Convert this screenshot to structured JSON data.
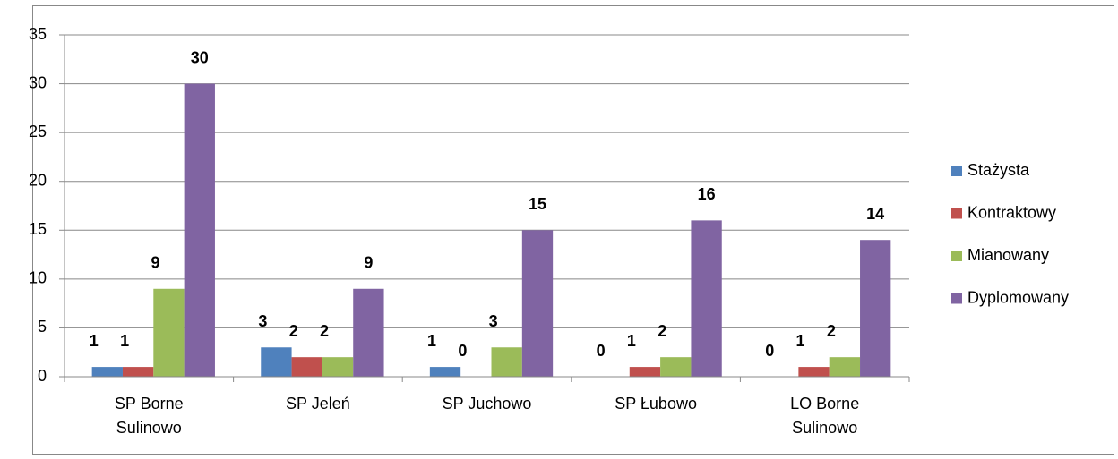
{
  "chart_data": {
    "type": "bar",
    "categories": [
      "SP Borne Sulinowo",
      "SP Jeleń",
      "SP Juchowo",
      "SP Łubowo",
      "LO Borne Sulinowo"
    ],
    "series": [
      {
        "name": "Stażysta",
        "color": "#4f81bd",
        "values": [
          1,
          3,
          1,
          0,
          0
        ]
      },
      {
        "name": "Kontraktowy",
        "color": "#c0504d",
        "values": [
          1,
          2,
          0,
          1,
          1
        ]
      },
      {
        "name": "Mianowany",
        "color": "#9bbb59",
        "values": [
          9,
          2,
          3,
          2,
          2
        ]
      },
      {
        "name": "Dyplomowany",
        "color": "#8064a2",
        "values": [
          30,
          9,
          15,
          16,
          14
        ]
      }
    ],
    "ylim": [
      0,
      35
    ],
    "yticks": [
      0,
      5,
      10,
      15,
      20,
      25,
      30,
      35
    ],
    "grid": true,
    "legend": "right"
  }
}
